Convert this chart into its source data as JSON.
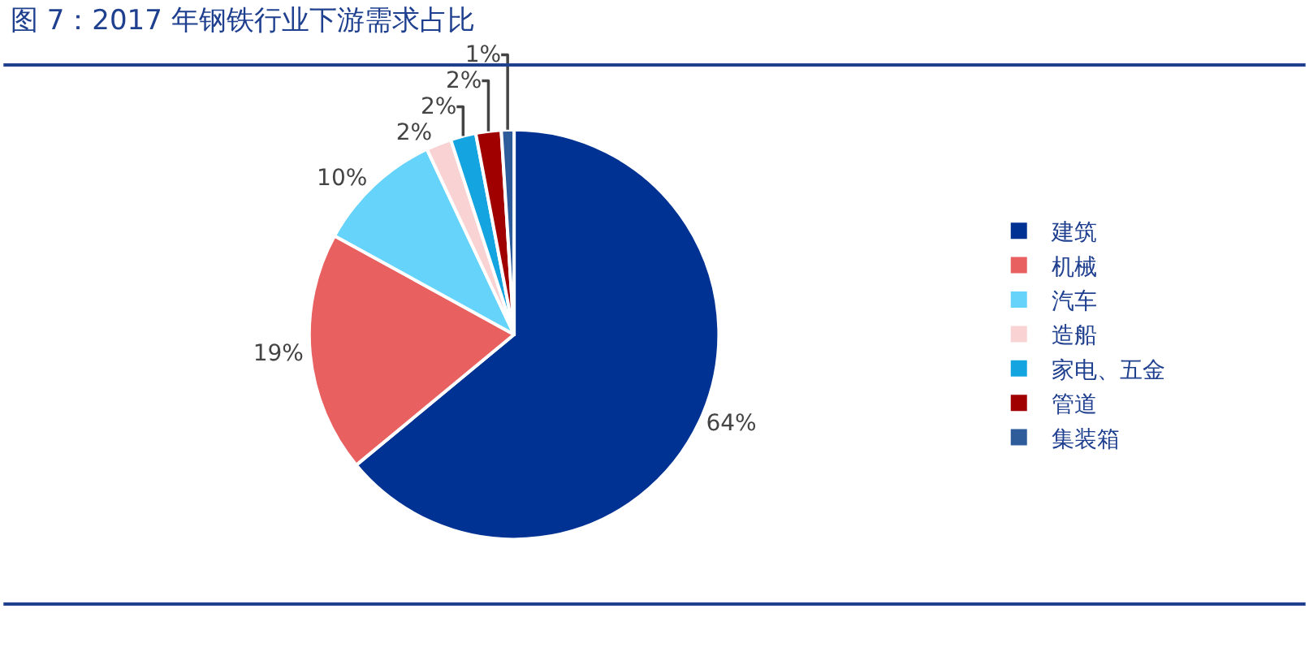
{
  "chart_data": {
    "type": "pie",
    "title": "图 7：2017 年钢铁行业下游需求占比",
    "categories": [
      "建筑",
      "机械",
      "汽车",
      "造船",
      "家电、五金",
      "管道",
      "集装箱"
    ],
    "values": [
      64,
      19,
      10,
      2,
      2,
      2,
      1
    ],
    "colors": [
      "#003293",
      "#e86060",
      "#66d4fa",
      "#f9d3d3",
      "#14a5e0",
      "#a00000",
      "#2e5b9a"
    ],
    "value_labels": [
      "64%",
      "19%",
      "10%",
      "2%",
      "2%",
      "2%",
      "1%"
    ],
    "legend": "right"
  }
}
